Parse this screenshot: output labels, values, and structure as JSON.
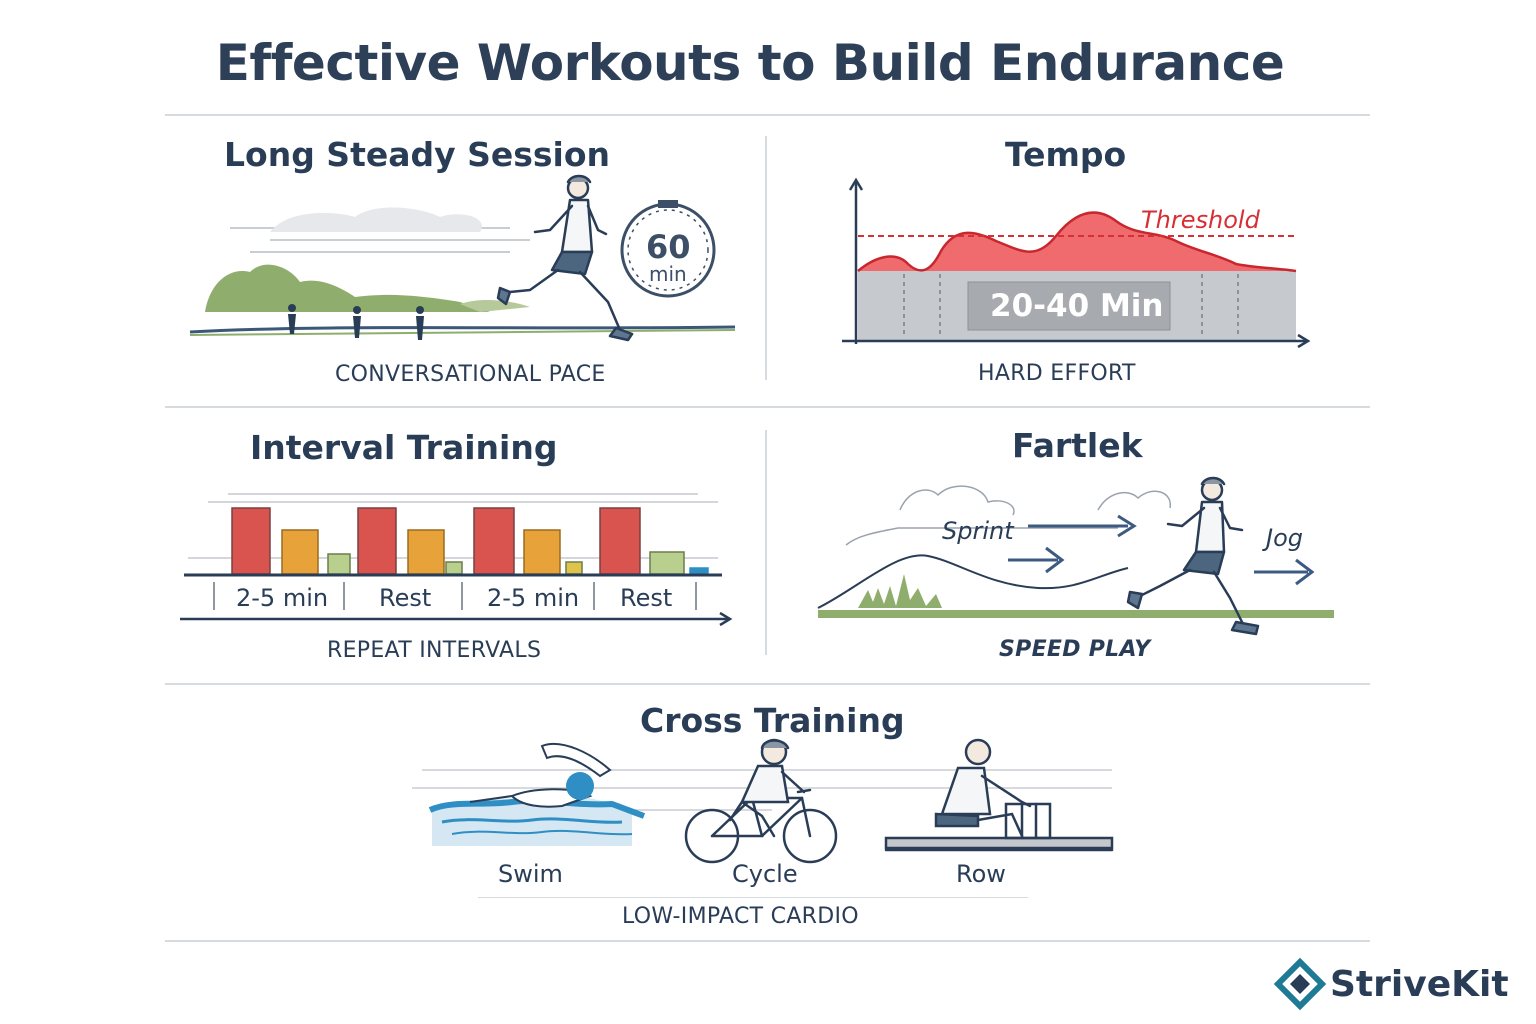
{
  "title": "Effective Workouts to Build Endurance",
  "sections": {
    "long_steady": {
      "title": "Long Steady Session",
      "timer_value": "60",
      "timer_unit": "min",
      "caption": "CONVERSATIONAL PACE"
    },
    "tempo": {
      "title": "Tempo",
      "threshold_label": "Threshold",
      "duration_label": "20-40 Min",
      "caption": "HARD EFFORT"
    },
    "interval": {
      "title": "Interval Training",
      "segments": [
        "2-5 min",
        "Rest",
        "2-5 min",
        "Rest"
      ],
      "caption": "REPEAT INTERVALS"
    },
    "fartlek": {
      "title": "Fartlek",
      "sprint_label": "Sprint",
      "jog_label": "Jog",
      "caption": "SPEED PLAY"
    },
    "cross": {
      "title": "Cross Training",
      "activities": [
        "Swim",
        "Cycle",
        "Row"
      ],
      "caption": "LOW-IMPACT CARDIO"
    }
  },
  "brand": {
    "name": "StriveKit"
  },
  "colors": {
    "navy": "#2a3d57",
    "red": "#d9534f",
    "orange": "#e8a23a",
    "green": "#b8cf8e",
    "threshold_red": "#d62f35",
    "swim_blue": "#2f8fc4",
    "brand_teal": "#1f7a96"
  }
}
